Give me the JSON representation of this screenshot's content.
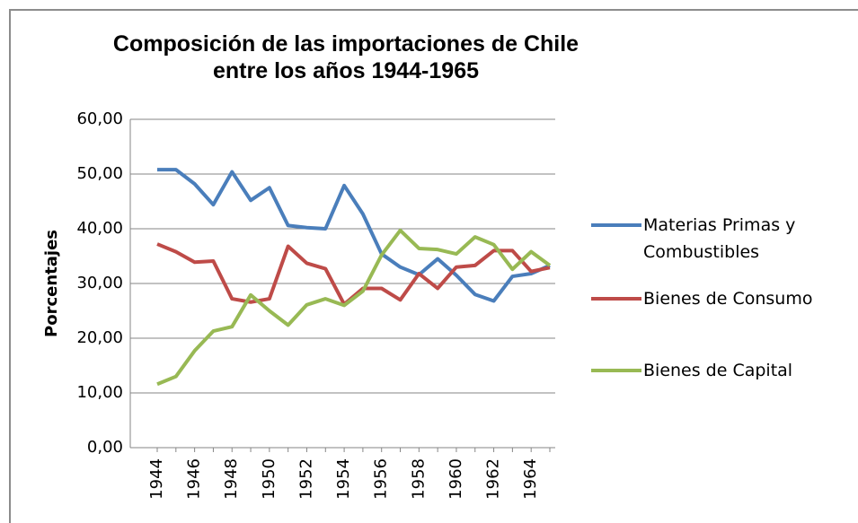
{
  "chart_data": {
    "type": "line",
    "title": "Composición de las importaciones de Chile entre los años 1944-1965",
    "y_label": "Porcentajes",
    "categories": [
      "1944",
      null,
      "1946",
      null,
      "1948",
      null,
      "1950",
      null,
      "1952",
      null,
      "1954",
      null,
      "1956",
      null,
      "1958",
      null,
      "1960",
      null,
      "1962",
      null,
      "1964",
      null
    ],
    "series": [
      {
        "name": "Materias Primas y Combustibles",
        "color": "#4a7ebb",
        "values": [
          50.8,
          50.8,
          48.2,
          44.4,
          50.4,
          45.2,
          47.5,
          40.6,
          40.2,
          40.0,
          47.9,
          42.7,
          35.4,
          33.0,
          31.6,
          34.5,
          31.5,
          28.0,
          26.8,
          31.3,
          31.8,
          33.3
        ]
      },
      {
        "name": "Bienes de Consumo",
        "color": "#be4b48",
        "values": [
          37.2,
          35.8,
          33.9,
          34.1,
          27.2,
          26.6,
          27.2,
          36.8,
          33.7,
          32.7,
          26.2,
          29.1,
          29.1,
          27.0,
          31.8,
          29.1,
          33.0,
          33.3,
          36.0,
          36.0,
          32.2,
          32.9
        ]
      },
      {
        "name": "Bienes de Capital",
        "color": "#98b954",
        "values": [
          11.6,
          13.0,
          17.7,
          21.3,
          22.1,
          27.9,
          25.0,
          22.4,
          26.1,
          27.2,
          26.0,
          28.6,
          35.2,
          39.7,
          36.4,
          36.2,
          35.4,
          38.5,
          37.1,
          32.6,
          35.8,
          33.3
        ]
      }
    ],
    "ylim": [
      0,
      60
    ],
    "yticks": [
      {
        "value": 0,
        "label": "0,00"
      },
      {
        "value": 10,
        "label": "10,00"
      },
      {
        "value": 20,
        "label": "20,00"
      },
      {
        "value": 30,
        "label": "30,00"
      },
      {
        "value": 40,
        "label": "40,00"
      },
      {
        "value": 50,
        "label": "50,00"
      },
      {
        "value": 60,
        "label": "60,00"
      }
    ],
    "grid": true,
    "legend": "right"
  }
}
